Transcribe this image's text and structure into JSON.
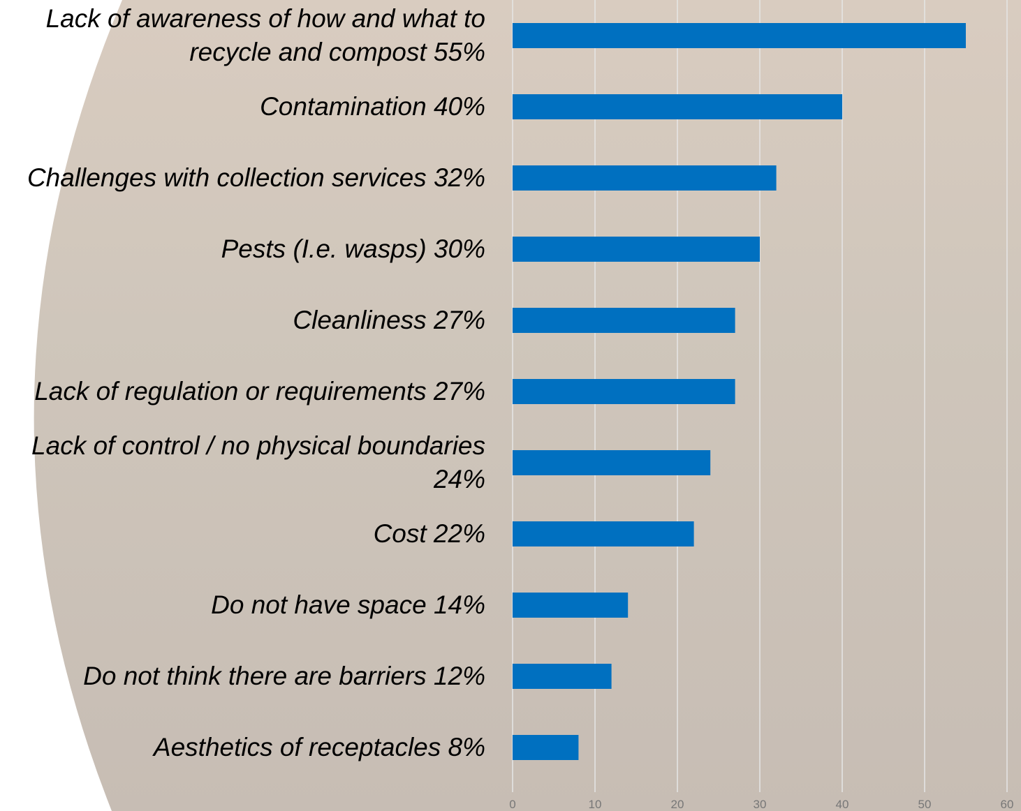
{
  "chart_data": {
    "type": "barh",
    "categories": [
      "Lack of awareness of how and what to recycle and compost 55%",
      "Contamination 40%",
      "Challenges with collection services 32%",
      "Pests (I.e. wasps) 30%",
      "Cleanliness 27%",
      "Lack of regulation or requirements 27%",
      "Lack of control / no physical boundaries 24%",
      "Cost 22%",
      "Do not have space 14%",
      "Do not think there are barriers 12%",
      "Aesthetics of receptacles 8%"
    ],
    "values": [
      55,
      40,
      32,
      30,
      27,
      27,
      24,
      22,
      14,
      12,
      8
    ],
    "color": "#0070c0",
    "xlim": [
      0,
      60
    ],
    "xticks": [
      0,
      10,
      20,
      30,
      40,
      50,
      60
    ],
    "grid": true
  }
}
